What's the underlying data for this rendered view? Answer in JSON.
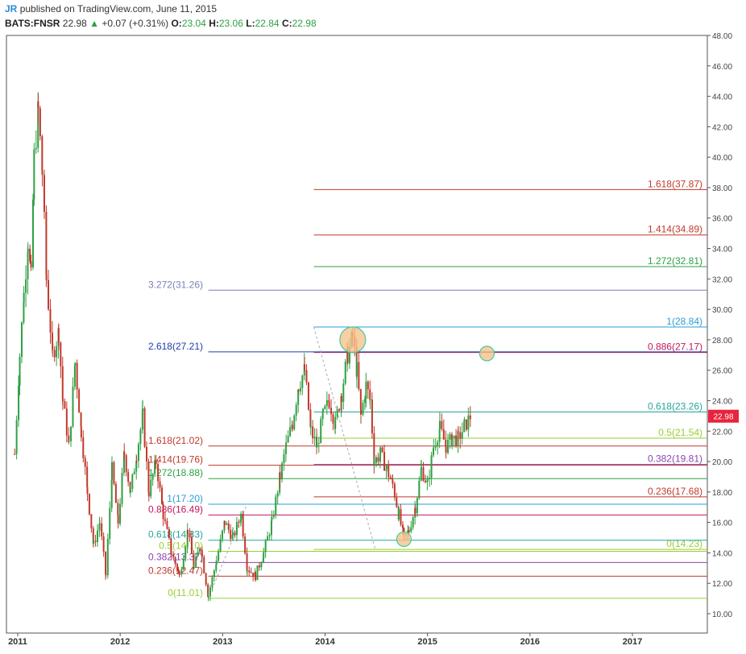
{
  "header": {
    "author": "JR",
    "published": "published on TradingView.com, June 11, 2015",
    "symbol": "BATS:FNSR",
    "last": "22.98",
    "change": "+0.07 (+0.31%)",
    "change_arrow": "▲",
    "o_label": "O:",
    "o_value": "23.04",
    "h_label": "H:",
    "h_value": "23.06",
    "l_label": "L:",
    "l_value": "22.84",
    "c_label": "C:",
    "c_value": "22.98"
  },
  "colors": {
    "up_candle": "#2ea043",
    "down_candle": "#c0392b",
    "price_badge": "#e8233c",
    "highlight_fill": "#f6c28b",
    "highlight_stroke": "#3ccf9a"
  },
  "chart_data": {
    "type": "candlestick",
    "title": "",
    "xlabel": "",
    "ylabel": "",
    "x_ticks": [
      "2011",
      "2012",
      "2013",
      "2014",
      "2015",
      "2016",
      "2017"
    ],
    "y_ticks": [
      "10.00",
      "12.00",
      "14.00",
      "16.00",
      "18.00",
      "20.00",
      "22.00",
      "24.00",
      "26.00",
      "28.00",
      "30.00",
      "32.00",
      "34.00",
      "36.00",
      "38.00",
      "40.00",
      "42.00",
      "44.00",
      "46.00",
      "48.00"
    ],
    "ylim": [
      9.0,
      48.0
    ],
    "xlim": [
      2010.95,
      2017.75
    ],
    "grid": false,
    "last_price": "22.98",
    "price_path": [
      [
        2010.97,
        20.5
      ],
      [
        2011.02,
        27
      ],
      [
        2011.06,
        31
      ],
      [
        2011.1,
        34.5
      ],
      [
        2011.13,
        32
      ],
      [
        2011.16,
        40
      ],
      [
        2011.2,
        43
      ],
      [
        2011.24,
        39
      ],
      [
        2011.28,
        32
      ],
      [
        2011.34,
        27
      ],
      [
        2011.4,
        28.5
      ],
      [
        2011.44,
        24
      ],
      [
        2011.5,
        21
      ],
      [
        2011.56,
        26.5
      ],
      [
        2011.62,
        22
      ],
      [
        2011.68,
        18
      ],
      [
        2011.74,
        14.5
      ],
      [
        2011.8,
        16
      ],
      [
        2011.86,
        12.5
      ],
      [
        2011.92,
        19.5
      ],
      [
        2011.98,
        16
      ],
      [
        2012.04,
        20.5
      ],
      [
        2012.1,
        18
      ],
      [
        2012.16,
        20.5
      ],
      [
        2012.22,
        23
      ],
      [
        2012.28,
        18
      ],
      [
        2012.35,
        20
      ],
      [
        2012.42,
        16.5
      ],
      [
        2012.5,
        14
      ],
      [
        2012.58,
        12.5
      ],
      [
        2012.66,
        15.5
      ],
      [
        2012.72,
        13
      ],
      [
        2012.78,
        14.5
      ],
      [
        2012.86,
        11.2
      ],
      [
        2012.94,
        13.5
      ],
      [
        2013.02,
        16
      ],
      [
        2013.1,
        15
      ],
      [
        2013.18,
        16.5
      ],
      [
        2013.24,
        13
      ],
      [
        2013.32,
        12.5
      ],
      [
        2013.4,
        14
      ],
      [
        2013.48,
        16
      ],
      [
        2013.56,
        19
      ],
      [
        2013.62,
        21
      ],
      [
        2013.68,
        22.5
      ],
      [
        2013.74,
        25
      ],
      [
        2013.8,
        26
      ],
      [
        2013.86,
        22
      ],
      [
        2013.92,
        21
      ],
      [
        2013.98,
        23
      ],
      [
        2014.04,
        24
      ],
      [
        2014.1,
        22.5
      ],
      [
        2014.16,
        24.5
      ],
      [
        2014.22,
        27
      ],
      [
        2014.27,
        28.2
      ],
      [
        2014.31,
        26
      ],
      [
        2014.35,
        23
      ],
      [
        2014.4,
        25
      ],
      [
        2014.44,
        24
      ],
      [
        2014.48,
        20
      ],
      [
        2014.54,
        20.5
      ],
      [
        2014.6,
        19.5
      ],
      [
        2014.66,
        18.5
      ],
      [
        2014.72,
        16.5
      ],
      [
        2014.77,
        14.9
      ],
      [
        2014.82,
        15.5
      ],
      [
        2014.88,
        17
      ],
      [
        2014.94,
        19.5
      ],
      [
        2015.0,
        18.5
      ],
      [
        2015.06,
        21
      ],
      [
        2015.12,
        22.2
      ],
      [
        2015.18,
        21
      ],
      [
        2015.24,
        21.5
      ],
      [
        2015.3,
        21.5
      ],
      [
        2015.36,
        22.3
      ],
      [
        2015.42,
        22.98
      ]
    ],
    "fib_levels": [
      {
        "label": "1.618(37.87)",
        "value": 37.87,
        "x_start": 2013.89,
        "x_end": 2017.75,
        "color": "#c0392b",
        "label_side": "right"
      },
      {
        "label": "1.414(34.89)",
        "value": 34.89,
        "x_start": 2013.89,
        "x_end": 2017.75,
        "color": "#c0392b",
        "label_side": "right"
      },
      {
        "label": "1.272(32.81)",
        "value": 32.81,
        "x_start": 2013.89,
        "x_end": 2017.75,
        "color": "#2ea043",
        "label_side": "right"
      },
      {
        "label": "1(28.84)",
        "value": 28.84,
        "x_start": 2013.89,
        "x_end": 2017.75,
        "color": "#2a9fd6",
        "label_side": "right"
      },
      {
        "label": "0.886(27.17)",
        "value": 27.17,
        "x_start": 2013.89,
        "x_end": 2017.75,
        "color": "#c2185b",
        "label_side": "right"
      },
      {
        "label": "0.618(23.26)",
        "value": 23.26,
        "x_start": 2013.89,
        "x_end": 2017.75,
        "color": "#26a69a",
        "label_side": "right"
      },
      {
        "label": "0.5(21.54)",
        "value": 21.54,
        "x_start": 2013.89,
        "x_end": 2017.75,
        "color": "#9acd32",
        "label_side": "right"
      },
      {
        "label": "0.382(19.81)",
        "value": 19.81,
        "x_start": 2013.89,
        "x_end": 2017.75,
        "color": "#8e44ad",
        "label_side": "right"
      },
      {
        "label": "0.236(17.68)",
        "value": 17.68,
        "x_start": 2013.89,
        "x_end": 2017.75,
        "color": "#c0392b",
        "label_side": "right"
      },
      {
        "label": "0(14.23)",
        "value": 14.23,
        "x_start": 2013.89,
        "x_end": 2017.75,
        "color": "#9acd32",
        "label_side": "right"
      },
      {
        "label": "3.272(31.26)",
        "value": 31.26,
        "x_start": 2012.86,
        "x_end": 2017.75,
        "color": "#7b7fb5",
        "label_side": "left"
      },
      {
        "label": "2.618(27.21)",
        "value": 27.21,
        "x_start": 2012.86,
        "x_end": 2017.75,
        "color": "#1f3fa8",
        "label_side": "left"
      },
      {
        "label": "1.618(21.02)",
        "value": 21.02,
        "x_start": 2012.86,
        "x_end": 2017.75,
        "color": "#c0392b",
        "label_side": "left"
      },
      {
        "label": "1.414(19.76)",
        "value": 19.76,
        "x_start": 2012.86,
        "x_end": 2017.75,
        "color": "#c0392b",
        "label_side": "left"
      },
      {
        "label": "1.272(18.88)",
        "value": 18.88,
        "x_start": 2012.86,
        "x_end": 2017.75,
        "color": "#2ea043",
        "label_side": "left"
      },
      {
        "label": "1(17.20)",
        "value": 17.2,
        "x_start": 2012.86,
        "x_end": 2017.75,
        "color": "#2a9fd6",
        "label_side": "left"
      },
      {
        "label": "0.886(16.49)",
        "value": 16.49,
        "x_start": 2012.86,
        "x_end": 2017.75,
        "color": "#c2185b",
        "label_side": "left"
      },
      {
        "label": "0.618(14.83)",
        "value": 14.83,
        "x_start": 2012.86,
        "x_end": 2017.75,
        "color": "#26a69a",
        "label_side": "left"
      },
      {
        "label": "0.5(14.10)",
        "value": 14.1,
        "x_start": 2012.86,
        "x_end": 2017.75,
        "color": "#9acd32",
        "label_side": "left"
      },
      {
        "label": "0.382(13.37)",
        "value": 13.37,
        "x_start": 2012.86,
        "x_end": 2017.75,
        "color": "#8e44ad",
        "label_side": "left"
      },
      {
        "label": "0.236(12.47)",
        "value": 12.47,
        "x_start": 2012.86,
        "x_end": 2017.75,
        "color": "#c0392b",
        "label_side": "left"
      },
      {
        "label": "0(11.01)",
        "value": 11.01,
        "x_start": 2012.86,
        "x_end": 2017.75,
        "color": "#9acd32",
        "label_side": "left"
      }
    ],
    "trend_lines": [
      {
        "from": [
          2013.89,
          28.84
        ],
        "to": [
          2014.49,
          14.23
        ]
      },
      {
        "from": [
          2012.86,
          11.01
        ],
        "to": [
          2013.24,
          17.2
        ]
      }
    ],
    "highlights": [
      {
        "x": 2014.27,
        "y": 28.0,
        "size": "large"
      },
      {
        "x": 2015.58,
        "y": 27.1,
        "size": "small"
      },
      {
        "x": 2014.77,
        "y": 14.9,
        "size": "small"
      }
    ]
  }
}
